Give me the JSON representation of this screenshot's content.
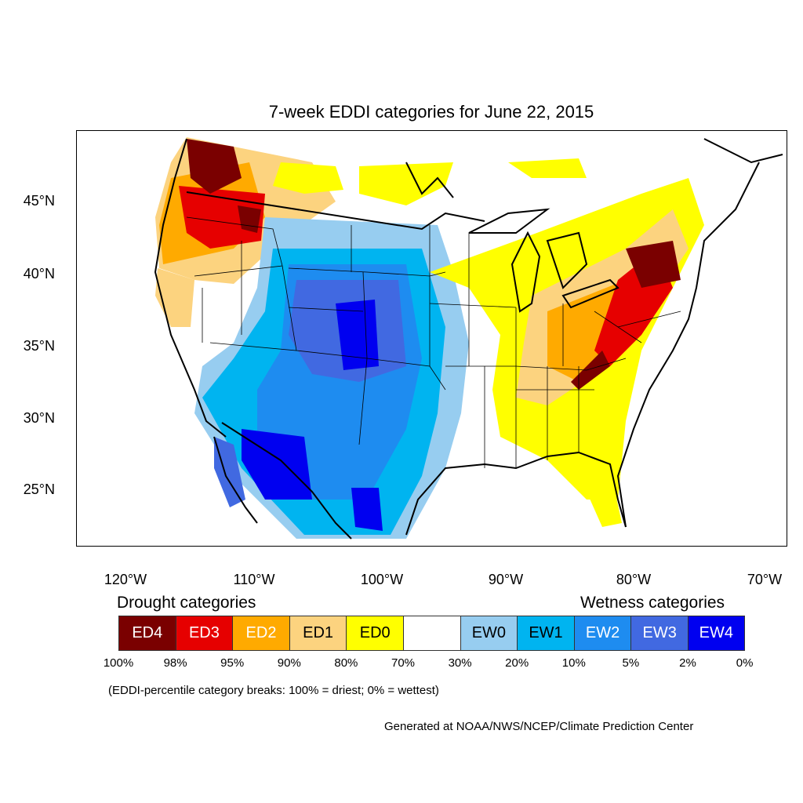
{
  "title": "7-week EDDI categories for June 22, 2015",
  "axes": {
    "y_ticks": [
      "45°N",
      "40°N",
      "35°N",
      "30°N",
      "25°N"
    ],
    "x_ticks": [
      "120°W",
      "110°W",
      "100°W",
      "90°W",
      "80°W",
      "70°W"
    ]
  },
  "legend": {
    "drought_heading": "Drought categories",
    "wetness_heading": "Wetness categories",
    "categories": [
      {
        "label": "ED4",
        "color": "#7a0000",
        "text_color": "#ffffff"
      },
      {
        "label": "ED3",
        "color": "#e60000",
        "text_color": "#ffffff"
      },
      {
        "label": "ED2",
        "color": "#ffaa00",
        "text_color": "#ffffff"
      },
      {
        "label": "ED1",
        "color": "#fcd37f",
        "text_color": "#000000"
      },
      {
        "label": "ED0",
        "color": "#ffff00",
        "text_color": "#000000"
      },
      {
        "label": "",
        "color": "#ffffff",
        "text_color": "#000000"
      },
      {
        "label": "EW0",
        "color": "#97cdf0",
        "text_color": "#000000"
      },
      {
        "label": "EW1",
        "color": "#00b4f0",
        "text_color": "#000000"
      },
      {
        "label": "EW2",
        "color": "#1e8cf0",
        "text_color": "#ffffff"
      },
      {
        "label": "EW3",
        "color": "#4169e1",
        "text_color": "#ffffff"
      },
      {
        "label": "EW4",
        "color": "#0000f0",
        "text_color": "#ffffff"
      }
    ],
    "breaks": [
      "100%",
      "98%",
      "95%",
      "90%",
      "80%",
      "70%",
      "30%",
      "20%",
      "10%",
      "5%",
      "2%",
      "0%"
    ],
    "note": "(EDDI-percentile category breaks: 100% = driest; 0% = wettest)"
  },
  "credit": "Generated at NOAA/NWS/NCEP/Climate Prediction Center"
}
